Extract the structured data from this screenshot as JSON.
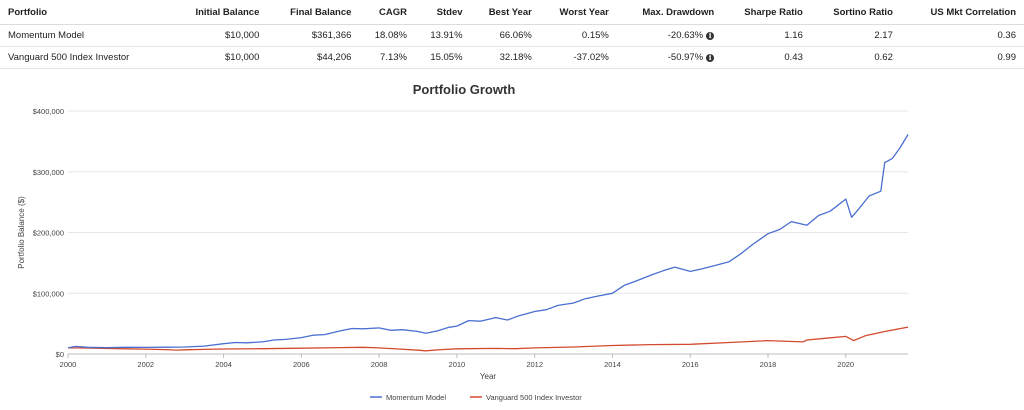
{
  "table": {
    "headers": [
      "Portfolio",
      "Initial Balance",
      "Final Balance",
      "CAGR",
      "Stdev",
      "Best Year",
      "Worst Year",
      "Max. Drawdown",
      "Sharpe Ratio",
      "Sortino Ratio",
      "US Mkt Correlation"
    ],
    "rows": [
      {
        "portfolio": "Momentum Model",
        "initial": "$10,000",
        "final": "$361,366",
        "cagr": "18.08%",
        "stdev": "13.91%",
        "best": "66.06%",
        "worst": "0.15%",
        "drawdown": "-20.63%",
        "sharpe": "1.16",
        "sortino": "2.17",
        "corr": "0.36"
      },
      {
        "portfolio": "Vanguard 500 Index Investor",
        "initial": "$10,000",
        "final": "$44,206",
        "cagr": "7.13%",
        "stdev": "15.05%",
        "best": "32.18%",
        "worst": "-37.02%",
        "drawdown": "-50.97%",
        "sharpe": "0.43",
        "sortino": "0.62",
        "corr": "0.99"
      }
    ],
    "info_icon": "info-icon"
  },
  "chart_data": {
    "type": "line",
    "title": "Portfolio Growth",
    "xlabel": "Year",
    "ylabel": "Portfolio Balance ($)",
    "xlim": [
      2000,
      2021.6
    ],
    "ylim": [
      0,
      400000
    ],
    "x_ticks": [
      "2000",
      "2002",
      "2004",
      "2006",
      "2008",
      "2010",
      "2012",
      "2014",
      "2016",
      "2018",
      "2020"
    ],
    "y_ticks": [
      "$0",
      "$100,000",
      "$200,000",
      "$300,000",
      "$400,000"
    ],
    "grid": true,
    "legend_position": "bottom",
    "series": [
      {
        "name": "Momentum Model",
        "color": "#4a6fd1",
        "points": [
          [
            2000,
            10000
          ],
          [
            2000.2,
            12500
          ],
          [
            2000.5,
            11000
          ],
          [
            2001,
            10500
          ],
          [
            2001.5,
            11000
          ],
          [
            2002,
            10800
          ],
          [
            2002.5,
            11200
          ],
          [
            2003,
            11500
          ],
          [
            2003.5,
            13000
          ],
          [
            2004,
            17000
          ],
          [
            2004.3,
            19000
          ],
          [
            2004.6,
            18500
          ],
          [
            2005,
            20000
          ],
          [
            2005.3,
            23000
          ],
          [
            2005.6,
            24000
          ],
          [
            2006,
            27000
          ],
          [
            2006.3,
            31000
          ],
          [
            2006.6,
            32000
          ],
          [
            2007,
            38000
          ],
          [
            2007.3,
            42000
          ],
          [
            2007.6,
            41500
          ],
          [
            2008,
            43000
          ],
          [
            2008.3,
            39000
          ],
          [
            2008.6,
            40000
          ],
          [
            2009,
            37000
          ],
          [
            2009.2,
            34000
          ],
          [
            2009.5,
            38000
          ],
          [
            2009.8,
            44000
          ],
          [
            2010,
            46000
          ],
          [
            2010.3,
            55000
          ],
          [
            2010.6,
            54000
          ],
          [
            2011,
            60000
          ],
          [
            2011.3,
            56000
          ],
          [
            2011.6,
            63000
          ],
          [
            2012,
            70000
          ],
          [
            2012.3,
            73000
          ],
          [
            2012.6,
            80000
          ],
          [
            2013,
            84000
          ],
          [
            2013.3,
            91000
          ],
          [
            2013.6,
            95000
          ],
          [
            2014,
            100000
          ],
          [
            2014.3,
            113000
          ],
          [
            2014.6,
            120000
          ],
          [
            2015,
            130000
          ],
          [
            2015.3,
            137000
          ],
          [
            2015.6,
            143000
          ],
          [
            2016,
            136000
          ],
          [
            2016.3,
            140000
          ],
          [
            2016.6,
            145000
          ],
          [
            2017,
            152000
          ],
          [
            2017.3,
            165000
          ],
          [
            2017.6,
            180000
          ],
          [
            2018,
            198000
          ],
          [
            2018.3,
            205000
          ],
          [
            2018.6,
            218000
          ],
          [
            2019,
            212000
          ],
          [
            2019.3,
            228000
          ],
          [
            2019.6,
            235000
          ],
          [
            2020,
            255000
          ],
          [
            2020.15,
            225000
          ],
          [
            2020.3,
            236000
          ],
          [
            2020.6,
            260000
          ],
          [
            2020.9,
            268000
          ],
          [
            2021,
            315000
          ],
          [
            2021.2,
            322000
          ],
          [
            2021.4,
            340000
          ],
          [
            2021.6,
            361366
          ]
        ]
      },
      {
        "name": "Vanguard 500 Index Investor",
        "color": "#d44a2e",
        "points": [
          [
            2000,
            10000
          ],
          [
            2000.5,
            9800
          ],
          [
            2001,
            9000
          ],
          [
            2001.5,
            8500
          ],
          [
            2002,
            8000
          ],
          [
            2002.5,
            7200
          ],
          [
            2002.8,
            6500
          ],
          [
            2003,
            6900
          ],
          [
            2003.5,
            7500
          ],
          [
            2004,
            8200
          ],
          [
            2005,
            8800
          ],
          [
            2006,
            9500
          ],
          [
            2007,
            10500
          ],
          [
            2007.6,
            11000
          ],
          [
            2008,
            10000
          ],
          [
            2008.5,
            8200
          ],
          [
            2009,
            6200
          ],
          [
            2009.2,
            5300
          ],
          [
            2009.6,
            7300
          ],
          [
            2010,
            8500
          ],
          [
            2011,
            9200
          ],
          [
            2011.5,
            8700
          ],
          [
            2012,
            10000
          ],
          [
            2013,
            11500
          ],
          [
            2014,
            14000
          ],
          [
            2015,
            15500
          ],
          [
            2016,
            16000
          ],
          [
            2017,
            19000
          ],
          [
            2018,
            22000
          ],
          [
            2018.9,
            20000
          ],
          [
            2019,
            23000
          ],
          [
            2019.5,
            26000
          ],
          [
            2020,
            29000
          ],
          [
            2020.2,
            22000
          ],
          [
            2020.5,
            30000
          ],
          [
            2021,
            37000
          ],
          [
            2021.6,
            44206
          ]
        ]
      }
    ]
  }
}
